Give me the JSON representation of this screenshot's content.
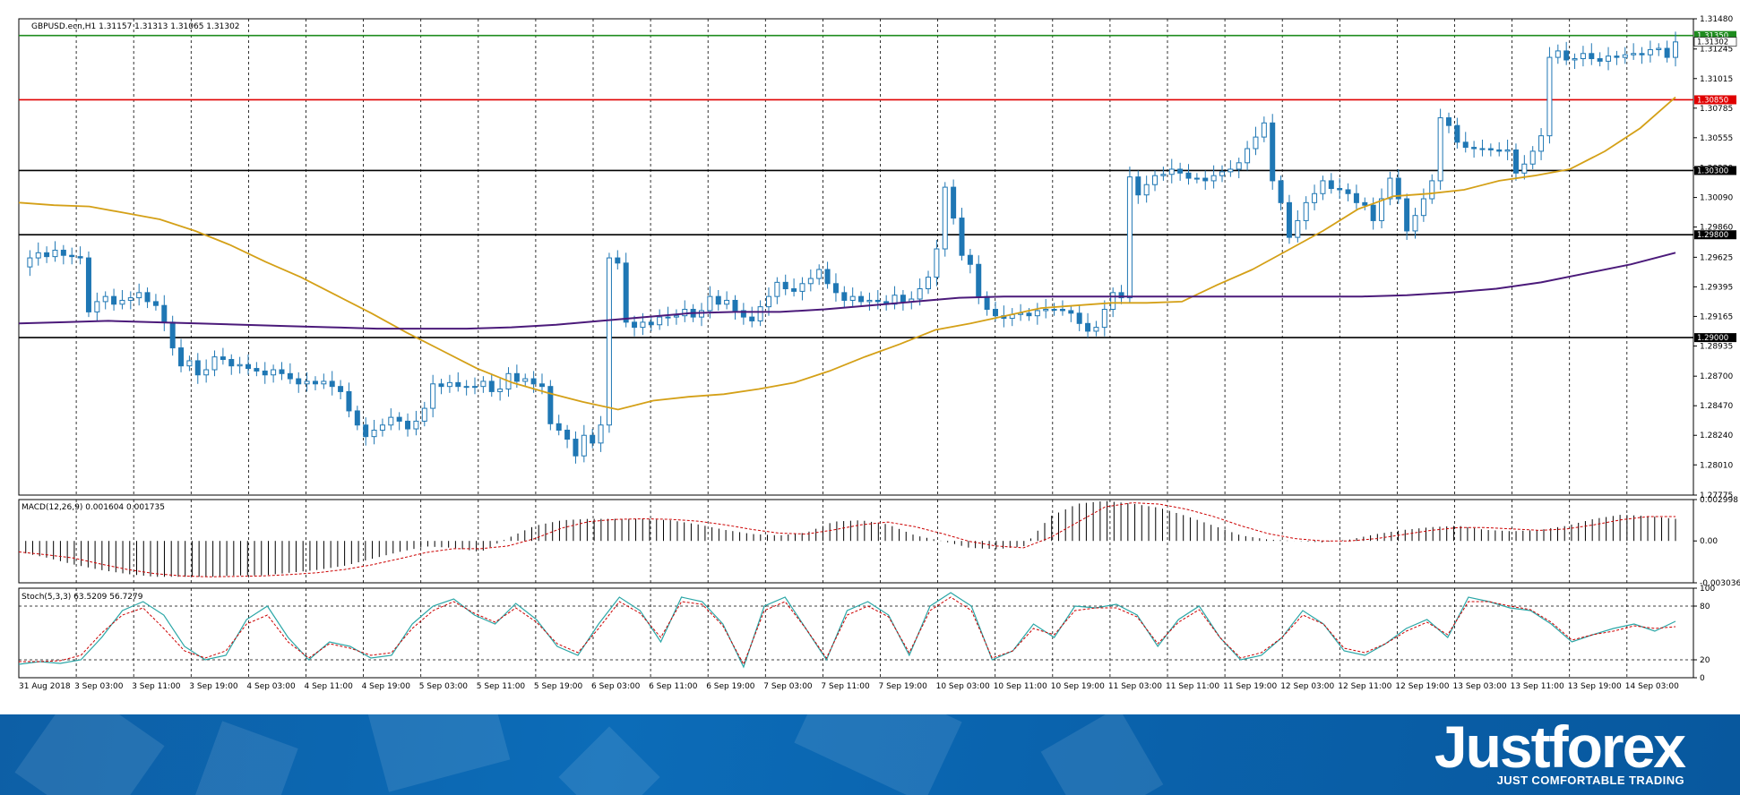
{
  "header": {
    "symbol_info": "GBPUSD.ecn,H1  1.31157 1.31313 1.31065 1.31302"
  },
  "colors": {
    "background": "#ffffff",
    "grid": "#000000",
    "bull_candle": "#1f77b4",
    "bear_candle": "#1f77b4",
    "ma_fast": "#d4a017",
    "ma_slow": "#4b1a7a",
    "resistance_green": "#1e8c1e",
    "resistance_red": "#e00000",
    "level_black": "#000000",
    "macd_signal": "#cc0000",
    "stoch_main": "#2aa6a6",
    "stoch_signal": "#cc0000",
    "banner": "#0b63ad"
  },
  "chart_data": [
    {
      "type": "candlestick",
      "panel": "main",
      "title": "GBPUSD.ecn,H1",
      "ohlc_last": {
        "open": 1.31157,
        "high": 1.31313,
        "low": 1.31065,
        "close": 1.31302
      },
      "ylim": [
        1.27775,
        1.3148
      ],
      "y_tick_labels": [
        "1.31480",
        "1.31245",
        "1.31015",
        "1.30785",
        "1.30555",
        "1.30320",
        "1.30090",
        "1.29860",
        "1.29625",
        "1.29395",
        "1.29165",
        "1.28935",
        "1.28700",
        "1.28470",
        "1.28240",
        "1.28010",
        "1.27775"
      ],
      "x_tick_labels": [
        "31 Aug 2018",
        "3 Sep 03:00",
        "3 Sep 11:00",
        "3 Sep 19:00",
        "4 Sep 03:00",
        "4 Sep 11:00",
        "4 Sep 19:00",
        "5 Sep 03:00",
        "5 Sep 11:00",
        "5 Sep 19:00",
        "6 Sep 03:00",
        "6 Sep 11:00",
        "6 Sep 19:00",
        "7 Sep 03:00",
        "7 Sep 11:00",
        "7 Sep 19:00",
        "10 Sep 03:00",
        "10 Sep 11:00",
        "10 Sep 19:00",
        "11 Sep 03:00",
        "11 Sep 11:00",
        "11 Sep 19:00",
        "12 Sep 03:00",
        "12 Sep 11:00",
        "12 Sep 19:00",
        "13 Sep 03:00",
        "13 Sep 11:00",
        "13 Sep 19:00",
        "14 Sep 03:00"
      ],
      "grid": "dashed vertical",
      "horizontal_levels": [
        {
          "label": "1.31350",
          "value": 1.3135,
          "color": "green"
        },
        {
          "label": "1.31302",
          "value": 1.31302,
          "color": "black",
          "current_price": true
        },
        {
          "label": "1.30850",
          "value": 1.3085,
          "color": "red"
        },
        {
          "label": "1.30300",
          "value": 1.303,
          "color": "black"
        },
        {
          "label": "1.29800",
          "value": 1.298,
          "color": "black"
        },
        {
          "label": "1.29000",
          "value": 1.29,
          "color": "black"
        }
      ],
      "price_path": [
        1.2955,
        1.2962,
        1.2966,
        1.2963,
        1.2968,
        1.2964,
        1.2963,
        1.2962,
        1.292,
        1.2928,
        1.2932,
        1.2926,
        1.2929,
        1.2931,
        1.2935,
        1.2928,
        1.2925,
        1.2912,
        1.2892,
        1.2878,
        1.2882,
        1.2871,
        1.2875,
        1.2885,
        1.2883,
        1.2878,
        1.2879,
        1.2876,
        1.2874,
        1.2871,
        1.2875,
        1.2872,
        1.2868,
        1.2864,
        1.2866,
        1.2864,
        1.2866,
        1.2862,
        1.2858,
        1.2843,
        1.2832,
        1.2823,
        1.2828,
        1.2832,
        1.2838,
        1.2835,
        1.2829,
        1.2835,
        1.2845,
        1.2864,
        1.2862,
        1.2865,
        1.2862,
        1.2862,
        1.2862,
        1.2866,
        1.2858,
        1.286,
        1.2872,
        1.2866,
        1.2868,
        1.2864,
        1.2862,
        1.2833,
        1.2828,
        1.2821,
        1.2808,
        1.2824,
        1.2818,
        1.2832,
        1.2962,
        1.2958,
        1.2912,
        1.2908,
        1.2912,
        1.291,
        1.2916,
        1.2916,
        1.2917,
        1.2922,
        1.2916,
        1.2921,
        1.2932,
        1.2926,
        1.2929,
        1.2921,
        1.2916,
        1.2913,
        1.2924,
        1.2932,
        1.2943,
        1.2938,
        1.2936,
        1.2942,
        1.2946,
        1.2953,
        1.2942,
        1.2935,
        1.2929,
        1.2932,
        1.2928,
        1.2929,
        1.2928,
        1.2926,
        1.2933,
        1.2928,
        1.293,
        1.2938,
        1.2947,
        1.2969,
        1.3017,
        1.2993,
        1.2964,
        1.2957,
        1.2932,
        1.2922,
        1.2917,
        1.2915,
        1.2918,
        1.2919,
        1.2917,
        1.2921,
        1.2922,
        1.2922,
        1.2921,
        1.2919,
        1.2911,
        1.2905,
        1.2908,
        1.2922,
        1.2935,
        1.2931,
        1.3025,
        1.3011,
        1.3019,
        1.3026,
        1.3027,
        1.3031,
        1.3028,
        1.3024,
        1.3024,
        1.3022,
        1.3026,
        1.3029,
        1.3031,
        1.3036,
        1.3047,
        1.3056,
        1.3067,
        1.3022,
        1.3005,
        1.2978,
        1.2991,
        1.3005,
        1.3012,
        1.3022,
        1.3016,
        1.3015,
        1.3012,
        1.3005,
        1.3003,
        1.2991,
        1.3008,
        1.3024,
        1.3008,
        1.2983,
        1.2995,
        1.3008,
        1.3022,
        1.3071,
        1.3065,
        1.3052,
        1.3048,
        1.3047,
        1.3047,
        1.3046,
        1.3045,
        1.3046,
        1.3028,
        1.3035,
        1.3045,
        1.3057,
        1.3118,
        1.3123,
        1.3116,
        1.3117,
        1.3121,
        1.3117,
        1.3115,
        1.3119,
        1.3118,
        1.312,
        1.3121,
        1.312,
        1.3124,
        1.3125,
        1.3118,
        1.313
      ],
      "series": [
        {
          "name": "MA fast",
          "values": [
            1.3005,
            1.3003,
            1.3002,
            1.2997,
            1.2992,
            1.2983,
            1.2972,
            1.2959,
            1.2947,
            1.2933,
            1.2919,
            1.2904,
            1.289,
            1.2876,
            1.2865,
            1.2857,
            1.285,
            1.2844,
            1.2851,
            1.2854,
            1.2856,
            1.286,
            1.2865,
            1.2874,
            1.2885,
            1.2895,
            1.2906,
            1.2911,
            1.2917,
            1.2923,
            1.2925,
            1.2927,
            1.2927,
            1.2928,
            1.2941,
            1.2953,
            1.2968,
            1.2983,
            1.3,
            1.301,
            1.3012,
            1.3015,
            1.3022,
            1.3026,
            1.3031,
            1.3045,
            1.3063,
            1.3087
          ]
        },
        {
          "name": "MA slow",
          "values": [
            1.2911,
            1.2912,
            1.2913,
            1.2912,
            1.2911,
            1.291,
            1.2909,
            1.2908,
            1.2907,
            1.2907,
            1.2907,
            1.2908,
            1.291,
            1.2913,
            1.2916,
            1.2919,
            1.292,
            1.292,
            1.2922,
            1.2925,
            1.2928,
            1.2931,
            1.2932,
            1.2932,
            1.2932,
            1.2932,
            1.2932,
            1.2932,
            1.2932,
            1.2932,
            1.2932,
            1.2933,
            1.2935,
            1.2938,
            1.2943,
            1.295,
            1.2957,
            1.2966
          ]
        }
      ]
    },
    {
      "type": "bar",
      "panel": "macd",
      "title": "MACD(12,26,9) 0.001604 0.001735",
      "params": "12,26,9",
      "last_main": 0.001604,
      "last_signal": 0.001735,
      "ylim": [
        -0.003036,
        0.002998
      ],
      "y_tick_labels": [
        "0.002998",
        "0.00",
        "-0.003036"
      ],
      "values": [
        -0.0008,
        -0.0012,
        -0.0017,
        -0.0021,
        -0.0024,
        -0.0026,
        -0.0026,
        -0.0026,
        -0.0025,
        -0.0025,
        -0.0023,
        -0.0021,
        -0.0018,
        -0.0013,
        -0.0008,
        -0.0004,
        -0.0005,
        -0.0008,
        0.0002,
        0.0011,
        0.0015,
        0.0016,
        0.0016,
        0.0016,
        0.0015,
        0.0012,
        0.0008,
        0.0005,
        0.0004,
        0.0006,
        0.0014,
        0.0015,
        0.0012,
        0.0004,
        0.0,
        -0.0005,
        -0.0006,
        -0.0004,
        0.0018,
        0.0027,
        0.0029,
        0.0027,
        0.0024,
        0.0018,
        0.0011,
        0.0004,
        0.0001,
        0.0,
        -0.0001,
        0.0001,
        0.0005,
        0.0008,
        0.001,
        0.0011,
        0.0008,
        0.0007,
        0.0008,
        0.0011,
        0.0016,
        0.0019,
        0.0018,
        0.0016
      ]
    },
    {
      "type": "line",
      "panel": "stochastic",
      "title": "Stoch(5,3,3) 63.5209 56.7279",
      "params": "5,3,3",
      "last_main": 63.5209,
      "last_signal": 56.7279,
      "ylim": [
        0,
        100
      ],
      "y_tick_labels": [
        "100",
        "80",
        "20",
        "0"
      ],
      "levels": [
        80,
        20
      ],
      "series": [
        {
          "name": "%K",
          "values": [
            15,
            18,
            16,
            20,
            45,
            75,
            85,
            70,
            35,
            20,
            25,
            65,
            80,
            45,
            20,
            40,
            35,
            22,
            25,
            60,
            80,
            88,
            70,
            60,
            83,
            65,
            35,
            25,
            60,
            90,
            75,
            40,
            90,
            85,
            60,
            12,
            80,
            90,
            55,
            20,
            75,
            85,
            70,
            25,
            80,
            95,
            80,
            20,
            30,
            60,
            45,
            80,
            78,
            82,
            70,
            35,
            65,
            80,
            45,
            20,
            25,
            45,
            75,
            60,
            30,
            25,
            38,
            55,
            65,
            45,
            90,
            85,
            78,
            75,
            60,
            40,
            48,
            55,
            60,
            52,
            63
          ]
        },
        {
          "name": "%D",
          "values": [
            18,
            18,
            19,
            25,
            50,
            70,
            78,
            55,
            30,
            22,
            30,
            60,
            70,
            40,
            22,
            38,
            33,
            25,
            28,
            55,
            75,
            85,
            72,
            62,
            78,
            62,
            38,
            28,
            55,
            85,
            72,
            45,
            85,
            82,
            58,
            15,
            75,
            85,
            55,
            22,
            70,
            80,
            68,
            28,
            75,
            90,
            75,
            22,
            30,
            55,
            48,
            75,
            78,
            78,
            68,
            38,
            62,
            76,
            45,
            22,
            28,
            45,
            70,
            60,
            33,
            28,
            38,
            52,
            62,
            48,
            85,
            85,
            80,
            76,
            62,
            42,
            48,
            52,
            58,
            55,
            57
          ]
        }
      ]
    }
  ],
  "brand": {
    "logo_text": "Justforex",
    "tagline": "JUST COMFORTABLE TRADING"
  }
}
